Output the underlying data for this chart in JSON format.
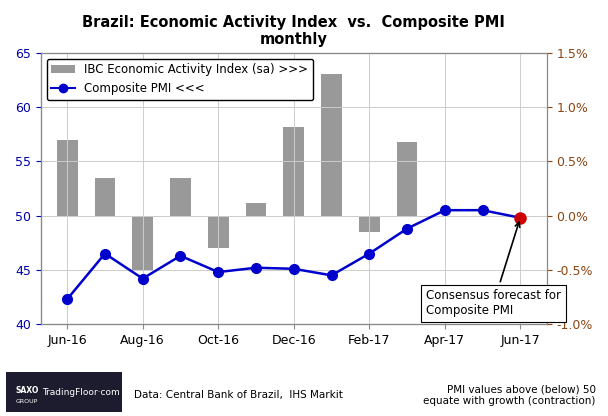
{
  "title": "Brazil: Economic Activity Index  vs.  Composite PMI",
  "subtitle": "monthly",
  "bar_label": "IBC Economic Activity Index (sa) >>>",
  "line_label": "Composite PMI <<<",
  "x_labels": [
    "Jun-16",
    "Aug-16",
    "Oct-16",
    "Dec-16",
    "Feb-17",
    "Apr-17",
    "Jun-17"
  ],
  "x_tick_positions": [
    0,
    2,
    4,
    6,
    8,
    10,
    12
  ],
  "bar_x": [
    0,
    1,
    2,
    3,
    4,
    5,
    6,
    7,
    8,
    9,
    10,
    11
  ],
  "bar_values": [
    0.7,
    0.35,
    -0.5,
    0.35,
    -0.3,
    0.12,
    0.82,
    1.3,
    -0.15,
    0.68,
    0.0,
    0.0
  ],
  "pmi_x": [
    0,
    1,
    2,
    3,
    4,
    5,
    6,
    7,
    8,
    9,
    10,
    11,
    12
  ],
  "pmi_values": [
    42.3,
    46.5,
    44.2,
    46.3,
    44.8,
    45.2,
    45.1,
    44.5,
    46.5,
    48.8,
    50.5,
    50.5,
    49.8
  ],
  "pmi_forecast_index": 12,
  "left_ylim": [
    40,
    65
  ],
  "right_ylim": [
    -1.0,
    1.5
  ],
  "left_yticks": [
    40,
    45,
    50,
    55,
    60,
    65
  ],
  "right_ytick_vals": [
    -1.0,
    -0.5,
    0.0,
    0.5,
    1.0,
    1.5
  ],
  "right_ytick_labels": [
    "-1.0%",
    "-0.5%",
    "0.0%",
    "0.5%",
    "1.0%",
    "1.5%"
  ],
  "bar_color": "#999999",
  "line_color": "#0000cc",
  "forecast_dot_color": "#cc0000",
  "annotation_text": "Consensus forecast for\nComposite PMI",
  "source_text": "Data: Central Bank of Brazil,  IHS Markit",
  "note_text": "PMI values above (below) 50\nequate with growth (contraction)",
  "background_color": "#ffffff",
  "grid_color": "#cccccc",
  "left_axis_color": "#0000aa",
  "right_axis_color": "#8B4513",
  "bar_width": 0.55,
  "xlim": [
    -0.7,
    12.7
  ]
}
